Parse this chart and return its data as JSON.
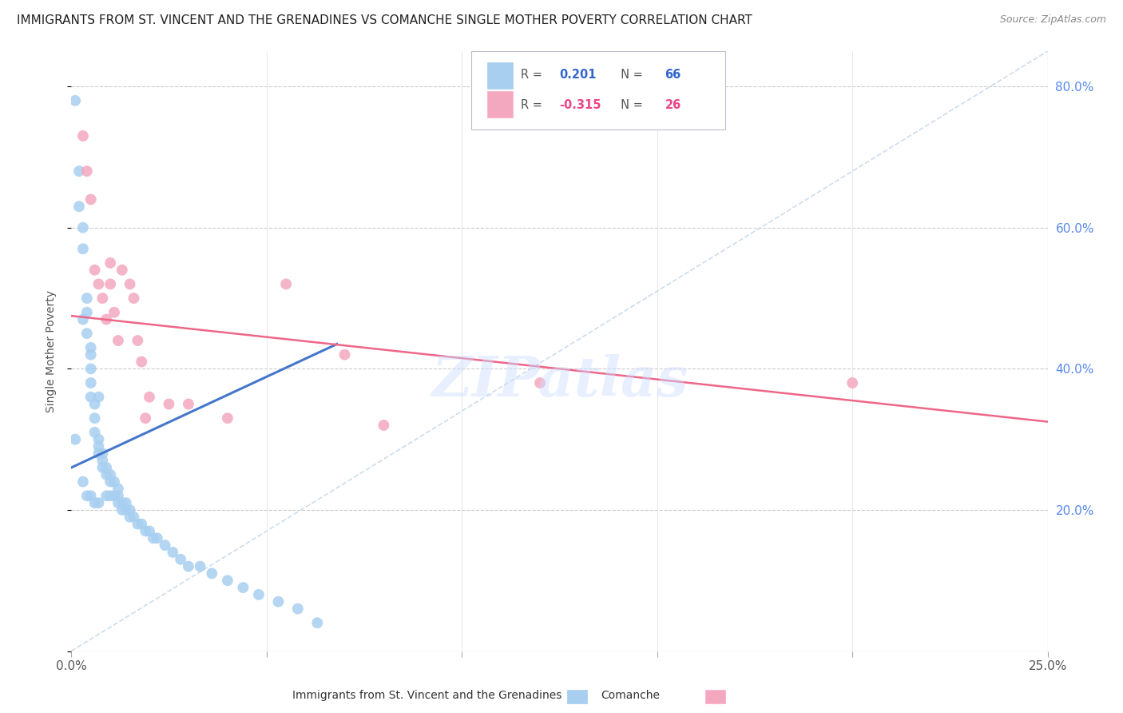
{
  "title": "IMMIGRANTS FROM ST. VINCENT AND THE GRENADINES VS COMANCHE SINGLE MOTHER POVERTY CORRELATION CHART",
  "source": "Source: ZipAtlas.com",
  "ylabel": "Single Mother Poverty",
  "xlim": [
    0.0,
    0.25
  ],
  "ylim": [
    0.0,
    0.85
  ],
  "xtick_positions": [
    0.0,
    0.05,
    0.1,
    0.15,
    0.2,
    0.25
  ],
  "xtick_labels": [
    "0.0%",
    "",
    "",
    "",
    "",
    "25.0%"
  ],
  "ytick_positions": [
    0.0,
    0.2,
    0.4,
    0.6,
    0.8
  ],
  "ytick_labels_right": [
    "",
    "20.0%",
    "40.0%",
    "60.0%",
    "80.0%"
  ],
  "legend_label1": "Immigrants from St. Vincent and the Grenadines",
  "legend_label2": "Comanche",
  "R1": "0.201",
  "N1": "66",
  "R2": "-0.315",
  "N2": "26",
  "color1": "#A8CFF0",
  "color2": "#F4A8C0",
  "trendline1_color": "#4477CC",
  "trendline2_color": "#EE6688",
  "diag_color": "#CCDDEE",
  "watermark": "ZIPatlas",
  "background_color": "#FFFFFF",
  "blue_x": [
    0.001,
    0.001,
    0.002,
    0.002,
    0.003,
    0.003,
    0.003,
    0.004,
    0.004,
    0.004,
    0.004,
    0.005,
    0.005,
    0.005,
    0.005,
    0.005,
    0.006,
    0.006,
    0.006,
    0.006,
    0.007,
    0.007,
    0.007,
    0.007,
    0.008,
    0.008,
    0.008,
    0.009,
    0.009,
    0.009,
    0.01,
    0.01,
    0.01,
    0.011,
    0.011,
    0.012,
    0.012,
    0.012,
    0.013,
    0.013,
    0.014,
    0.014,
    0.015,
    0.015,
    0.016,
    0.017,
    0.018,
    0.019,
    0.02,
    0.021,
    0.022,
    0.024,
    0.026,
    0.028,
    0.03,
    0.033,
    0.036,
    0.04,
    0.044,
    0.048,
    0.053,
    0.058,
    0.063,
    0.003,
    0.005,
    0.007
  ],
  "blue_y": [
    0.78,
    0.3,
    0.68,
    0.63,
    0.6,
    0.57,
    0.24,
    0.5,
    0.48,
    0.45,
    0.22,
    0.43,
    0.4,
    0.38,
    0.36,
    0.22,
    0.35,
    0.33,
    0.31,
    0.21,
    0.3,
    0.29,
    0.28,
    0.21,
    0.28,
    0.27,
    0.26,
    0.26,
    0.25,
    0.22,
    0.25,
    0.24,
    0.22,
    0.24,
    0.22,
    0.23,
    0.22,
    0.21,
    0.21,
    0.2,
    0.21,
    0.2,
    0.2,
    0.19,
    0.19,
    0.18,
    0.18,
    0.17,
    0.17,
    0.16,
    0.16,
    0.15,
    0.14,
    0.13,
    0.12,
    0.12,
    0.11,
    0.1,
    0.09,
    0.08,
    0.07,
    0.06,
    0.04,
    0.47,
    0.42,
    0.36
  ],
  "pink_x": [
    0.003,
    0.004,
    0.005,
    0.006,
    0.007,
    0.008,
    0.009,
    0.01,
    0.01,
    0.011,
    0.012,
    0.013,
    0.015,
    0.016,
    0.017,
    0.018,
    0.019,
    0.02,
    0.025,
    0.03,
    0.04,
    0.055,
    0.07,
    0.08,
    0.12,
    0.2
  ],
  "pink_y": [
    0.73,
    0.68,
    0.64,
    0.54,
    0.52,
    0.5,
    0.47,
    0.52,
    0.55,
    0.48,
    0.44,
    0.54,
    0.52,
    0.5,
    0.44,
    0.41,
    0.33,
    0.36,
    0.35,
    0.35,
    0.33,
    0.52,
    0.42,
    0.32,
    0.38,
    0.38
  ],
  "blue_trend_x": [
    0.0,
    0.068
  ],
  "blue_trend_y": [
    0.26,
    0.435
  ],
  "pink_trend_x": [
    0.0,
    0.25
  ],
  "pink_trend_y": [
    0.475,
    0.325
  ]
}
